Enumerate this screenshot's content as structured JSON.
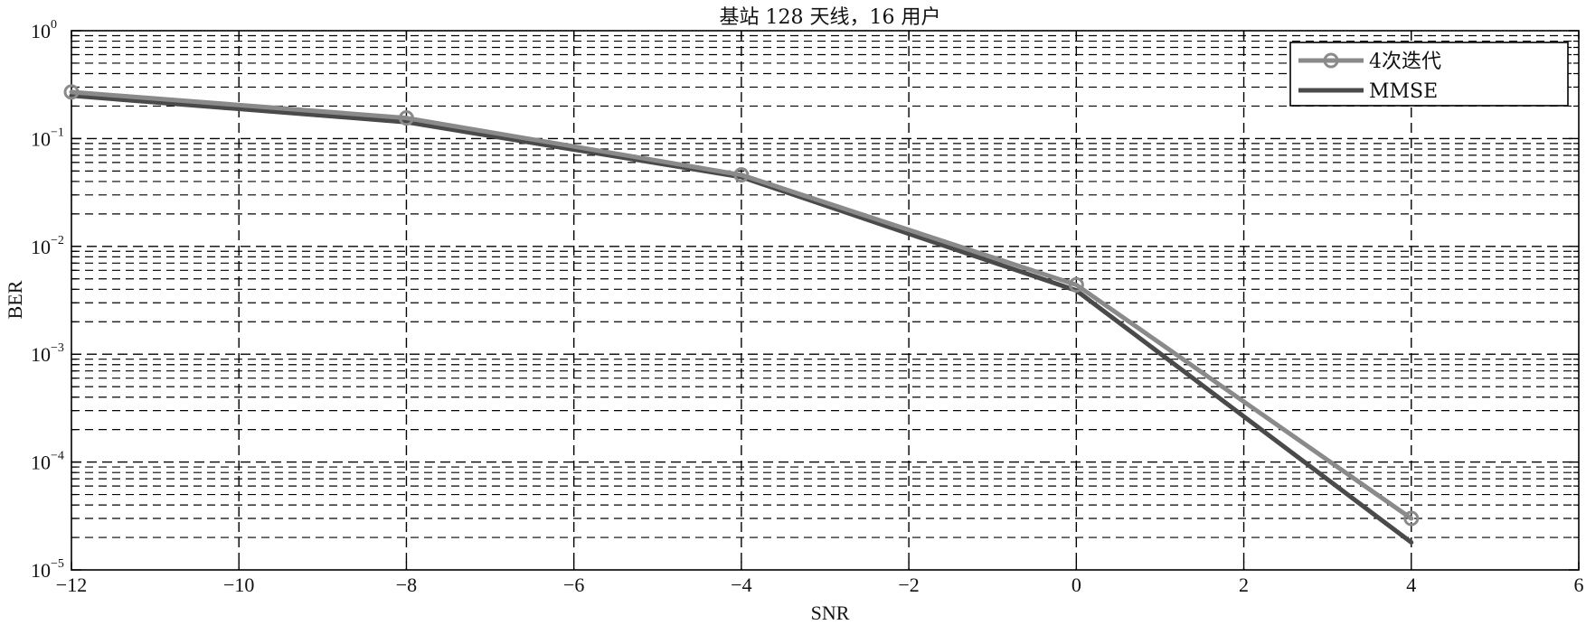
{
  "chart_data": {
    "type": "line",
    "title": "基站 128 天线，16 用户",
    "xlabel": "SNR",
    "ylabel": "BER",
    "xlim": [
      -12,
      6
    ],
    "ylim": [
      1e-05,
      1
    ],
    "yscale": "log",
    "grid": true,
    "legend_position": "top-right",
    "x_ticks": [
      "−12",
      "−10",
      "−8",
      "−6",
      "−4",
      "−2",
      "0",
      "2",
      "4",
      "6"
    ],
    "y_ticks": [
      {
        "base": "10",
        "exp": "0"
      },
      {
        "base": "10",
        "exp": "−1"
      },
      {
        "base": "10",
        "exp": "−2"
      },
      {
        "base": "10",
        "exp": "−3"
      },
      {
        "base": "10",
        "exp": "−4"
      },
      {
        "base": "10",
        "exp": "−5"
      }
    ],
    "series": [
      {
        "name": "4次迭代",
        "color": "#8a8a8a",
        "marker": "circle",
        "x": [
          -12,
          -8,
          -4,
          0,
          4
        ],
        "y": [
          0.27,
          0.155,
          0.046,
          0.0044,
          3e-05
        ]
      },
      {
        "name": "MMSE",
        "color": "#4a4a4a",
        "marker": "none",
        "x": [
          -12,
          -8,
          -4,
          0,
          4
        ],
        "y": [
          0.25,
          0.142,
          0.044,
          0.0039,
          1.8e-05
        ]
      }
    ]
  }
}
